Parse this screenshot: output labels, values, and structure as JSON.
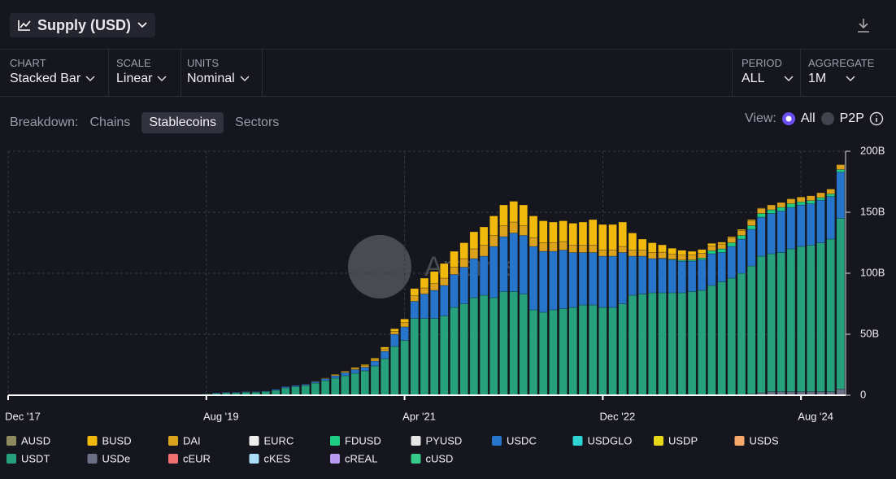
{
  "ui": {
    "title": "Supply (USD)",
    "controls": [
      {
        "label": "CHART",
        "value": "Stacked Bar"
      },
      {
        "label": "SCALE",
        "value": "Linear"
      },
      {
        "label": "UNITS",
        "value": "Nominal"
      },
      {
        "label": "PERIOD",
        "value": "ALL"
      },
      {
        "label": "AGGREGATE",
        "value": "1M"
      }
    ],
    "breakdown": {
      "label": "Breakdown:",
      "options": [
        "Chains",
        "Stablecoins",
        "Sectors"
      ]
    },
    "view": {
      "label": "View:",
      "options": [
        "All",
        "P2P"
      ]
    },
    "watermark": "Artemis"
  },
  "chart_data": {
    "type": "stacked_bar",
    "x": [
      20,
      21,
      22,
      23,
      24,
      25,
      26,
      27,
      28,
      29,
      30,
      31,
      32,
      33,
      34,
      35,
      36,
      37,
      38,
      39,
      40,
      41,
      42,
      43,
      44,
      45,
      46,
      47,
      48,
      49,
      50,
      51,
      52,
      53,
      54,
      55,
      56,
      57,
      58,
      59,
      60,
      61,
      62,
      63,
      64,
      65,
      66,
      67,
      68,
      69,
      70,
      71,
      72,
      73,
      74,
      75,
      76,
      77,
      78,
      79,
      80,
      81,
      82,
      83,
      84
    ],
    "xlim": [
      0,
      84.5
    ],
    "xticks": [
      {
        "value": 0,
        "label": "Dec '17"
      },
      {
        "value": 20,
        "label": "Aug '19"
      },
      {
        "value": 40,
        "label": "Apr '21"
      },
      {
        "value": 60,
        "label": "Dec '22"
      },
      {
        "value": 80,
        "label": "Aug '24"
      }
    ],
    "ylim": [
      0,
      200
    ],
    "yticks": [
      0,
      {
        "value": 50,
        "label": "50B"
      },
      {
        "value": 100,
        "label": "100B"
      },
      {
        "value": 150,
        "label": "150B"
      },
      {
        "value": 200,
        "label": "200B"
      }
    ],
    "grid": true,
    "series": [
      {
        "name": "AUSD",
        "color": "#8c8a5e",
        "values": [
          0,
          0,
          0,
          0,
          0,
          0,
          0,
          0,
          0,
          0,
          0,
          0,
          0,
          0,
          0,
          0,
          0,
          0,
          0,
          0,
          0,
          0,
          0,
          0,
          0,
          0,
          0,
          0,
          0,
          0,
          0,
          0,
          0,
          0,
          0,
          0,
          0,
          0,
          0,
          0,
          0,
          0,
          0,
          0,
          0,
          0,
          0,
          0,
          0,
          0,
          0,
          0,
          0,
          0,
          0,
          0,
          0,
          0,
          0,
          0,
          0,
          0,
          0,
          0,
          0
        ]
      },
      {
        "name": "BUSD",
        "color": "#f0b90b",
        "values": [
          0,
          0,
          0,
          0,
          0,
          0,
          0,
          0,
          0,
          0,
          0,
          0.2,
          0.3,
          0.5,
          0.5,
          0.8,
          1,
          1,
          1.5,
          2,
          3,
          6,
          8,
          10,
          12,
          13,
          13,
          14,
          15,
          16,
          17,
          17,
          17,
          18,
          18,
          17,
          17,
          18,
          19,
          21,
          21,
          21,
          20,
          14,
          9,
          8,
          6,
          5,
          4,
          3,
          3,
          2,
          1.5,
          1,
          1,
          1,
          0.5,
          0,
          0,
          0,
          0,
          0,
          0,
          0,
          0
        ]
      },
      {
        "name": "DAI",
        "color": "#dca21c",
        "values": [
          0,
          0,
          0,
          0,
          0,
          0,
          0,
          0,
          0,
          0,
          0.1,
          0.3,
          0.5,
          0.8,
          0.9,
          1,
          1.2,
          1.5,
          2,
          2.5,
          3.5,
          4.5,
          5,
          5.5,
          6,
          6,
          7,
          8,
          9,
          9,
          9,
          9,
          8,
          7,
          7,
          7,
          7,
          6,
          6,
          6,
          5,
          5,
          5,
          5,
          5,
          5,
          5,
          4,
          4,
          4,
          4,
          4,
          4,
          4,
          4,
          4,
          4,
          4,
          4,
          4,
          4,
          4,
          4,
          4,
          4
        ]
      },
      {
        "name": "EURC",
        "color": "#eeeeee",
        "values": [
          0,
          0,
          0,
          0,
          0,
          0,
          0,
          0,
          0,
          0,
          0,
          0,
          0,
          0,
          0,
          0,
          0,
          0,
          0,
          0,
          0,
          0,
          0,
          0,
          0,
          0,
          0,
          0,
          0,
          0,
          0,
          0,
          0,
          0,
          0,
          0,
          0,
          0,
          0,
          0,
          0,
          0,
          0,
          0,
          0,
          0,
          0,
          0,
          0,
          0,
          0,
          0,
          0,
          0,
          0,
          0,
          0,
          0,
          0,
          0,
          0,
          0,
          0,
          0,
          0
        ]
      },
      {
        "name": "FDUSD",
        "color": "#1ecc82",
        "values": [
          0,
          0,
          0,
          0,
          0,
          0,
          0,
          0,
          0,
          0,
          0,
          0,
          0,
          0,
          0,
          0,
          0,
          0,
          0,
          0,
          0,
          0,
          0,
          0,
          0,
          0,
          0,
          0,
          0,
          0,
          0,
          0,
          0,
          0,
          0,
          0,
          0,
          0,
          0,
          0,
          0,
          0,
          0,
          0,
          0,
          0,
          0.3,
          0.5,
          0.8,
          1,
          1.5,
          2.5,
          3,
          3,
          3,
          3,
          3,
          3,
          3,
          3,
          2.5,
          2.5,
          2,
          2,
          2
        ]
      },
      {
        "name": "PYUSD",
        "color": "#e6e6e6",
        "values": [
          0,
          0,
          0,
          0,
          0,
          0,
          0,
          0,
          0,
          0,
          0,
          0,
          0,
          0,
          0,
          0,
          0,
          0,
          0,
          0,
          0,
          0,
          0,
          0,
          0,
          0,
          0,
          0,
          0,
          0,
          0,
          0,
          0,
          0,
          0,
          0,
          0,
          0,
          0,
          0,
          0,
          0,
          0,
          0,
          0,
          0,
          0,
          0,
          0,
          0,
          0,
          0,
          0,
          0,
          0,
          0,
          0,
          0,
          0,
          0,
          0,
          0,
          0,
          0,
          0
        ]
      },
      {
        "name": "USDC",
        "color": "#2775ca",
        "values": [
          0,
          0.5,
          0.5,
          0.5,
          0.5,
          0.5,
          0.5,
          0.8,
          1,
          1,
          1,
          1.2,
          1.5,
          2,
          2.5,
          3,
          3,
          4,
          6,
          10,
          11,
          14,
          20,
          23,
          25,
          27,
          30,
          32,
          32,
          42,
          45,
          48,
          48,
          52,
          50,
          48,
          48,
          45,
          43,
          43,
          42,
          42,
          42,
          32,
          31,
          28,
          28,
          27,
          26,
          25,
          25,
          26,
          24,
          26,
          28,
          30,
          32,
          33,
          34,
          34,
          34,
          34,
          35,
          35,
          38
        ]
      },
      {
        "name": "USDGLO",
        "color": "#2dd4d4",
        "values": [
          0,
          0,
          0,
          0,
          0,
          0,
          0,
          0,
          0,
          0,
          0,
          0,
          0,
          0,
          0,
          0,
          0,
          0,
          0,
          0,
          0,
          0,
          0,
          0,
          0,
          0,
          0,
          0,
          0,
          0,
          0,
          0,
          0,
          0,
          0,
          0,
          0,
          0,
          0,
          0,
          0,
          0,
          0,
          0,
          0,
          0,
          0,
          0,
          0,
          0,
          0,
          0,
          0,
          0,
          0,
          0,
          0,
          0,
          0,
          0,
          0,
          0,
          0,
          0,
          0
        ]
      },
      {
        "name": "USDP",
        "color": "#e8d81a",
        "values": [
          0,
          0,
          0,
          0,
          0,
          0,
          0,
          0,
          0,
          0,
          0,
          0,
          0,
          0,
          0,
          0,
          0,
          0,
          0,
          0,
          0,
          0,
          0,
          0,
          0,
          0,
          0,
          0,
          0,
          0,
          0,
          0,
          0,
          0,
          0,
          0,
          0,
          0,
          0,
          0,
          0,
          0,
          0,
          0,
          0,
          0,
          0,
          0,
          0,
          0,
          0,
          0,
          0,
          0,
          0,
          0,
          0,
          0,
          0,
          0,
          0,
          0,
          0,
          0,
          0
        ]
      },
      {
        "name": "USDS",
        "color": "#f6a96b",
        "values": [
          0,
          0,
          0,
          0,
          0,
          0,
          0,
          0,
          0,
          0,
          0,
          0,
          0,
          0,
          0,
          0,
          0,
          0,
          0,
          0,
          0,
          0,
          0,
          0,
          0,
          0,
          0,
          0,
          0,
          0,
          0,
          0,
          0,
          0,
          0,
          0,
          0,
          0,
          0,
          0,
          0,
          0,
          0,
          0,
          0,
          0,
          0,
          0,
          0,
          0,
          0,
          0,
          0,
          0,
          0,
          0,
          0,
          0,
          0,
          0,
          0,
          0,
          0,
          0,
          0
        ]
      },
      {
        "name": "USDT",
        "color": "#26a17b",
        "values": [
          1,
          1.5,
          2,
          2,
          2.5,
          2.5,
          3,
          4,
          6,
          7,
          8,
          10,
          12,
          14,
          16,
          18,
          20,
          24,
          30,
          40,
          45,
          63,
          63,
          63,
          65,
          72,
          75,
          80,
          82,
          80,
          85,
          85,
          83,
          70,
          68,
          70,
          71,
          72,
          74,
          74,
          72,
          72,
          75,
          82,
          83,
          84,
          84,
          84,
          84,
          85,
          86,
          90,
          93,
          96,
          100,
          105,
          112,
          113,
          114,
          117,
          119,
          120,
          122,
          125,
          140
        ]
      },
      {
        "name": "USDe",
        "color": "#6b6f85",
        "values": [
          0,
          0,
          0,
          0,
          0,
          0,
          0,
          0,
          0,
          0,
          0,
          0,
          0,
          0,
          0,
          0,
          0,
          0,
          0,
          0,
          0,
          0,
          0,
          0,
          0,
          0,
          0,
          0,
          0,
          0,
          0,
          0,
          0,
          0,
          0,
          0,
          0,
          0,
          0,
          0,
          0,
          0,
          0,
          0,
          0,
          0,
          0,
          0,
          0,
          0,
          0,
          0,
          0,
          0,
          0,
          1,
          2,
          3,
          3,
          3,
          3,
          3,
          3,
          3,
          5
        ]
      },
      {
        "name": "cEUR",
        "color": "#f07070",
        "values": [
          0,
          0,
          0,
          0,
          0,
          0,
          0,
          0,
          0,
          0,
          0,
          0,
          0,
          0,
          0,
          0,
          0,
          0,
          0,
          0,
          0,
          0,
          0,
          0,
          0,
          0,
          0,
          0,
          0,
          0,
          0,
          0,
          0,
          0,
          0,
          0,
          0,
          0,
          0,
          0,
          0,
          0,
          0,
          0,
          0,
          0,
          0,
          0,
          0,
          0,
          0,
          0,
          0,
          0,
          0,
          0,
          0,
          0,
          0,
          0,
          0,
          0,
          0,
          0,
          0
        ]
      },
      {
        "name": "cKES",
        "color": "#a8ddf5",
        "values": [
          0,
          0,
          0,
          0,
          0,
          0,
          0,
          0,
          0,
          0,
          0,
          0,
          0,
          0,
          0,
          0,
          0,
          0,
          0,
          0,
          0,
          0,
          0,
          0,
          0,
          0,
          0,
          0,
          0,
          0,
          0,
          0,
          0,
          0,
          0,
          0,
          0,
          0,
          0,
          0,
          0,
          0,
          0,
          0,
          0,
          0,
          0,
          0,
          0,
          0,
          0,
          0,
          0,
          0,
          0,
          0,
          0,
          0,
          0,
          0,
          0,
          0,
          0,
          0,
          0
        ]
      },
      {
        "name": "cREAL",
        "color": "#b69af0",
        "values": [
          0,
          0,
          0,
          0,
          0,
          0,
          0,
          0,
          0,
          0,
          0,
          0,
          0,
          0,
          0,
          0,
          0,
          0,
          0,
          0,
          0,
          0,
          0,
          0,
          0,
          0,
          0,
          0,
          0,
          0,
          0,
          0,
          0,
          0,
          0,
          0,
          0,
          0,
          0,
          0,
          0,
          0,
          0,
          0,
          0,
          0,
          0,
          0,
          0,
          0,
          0,
          0,
          0,
          0,
          0,
          0,
          0,
          0,
          0,
          0,
          0,
          0,
          0,
          0,
          0
        ]
      },
      {
        "name": "cUSD",
        "color": "#35c98a",
        "values": [
          0,
          0,
          0,
          0,
          0,
          0,
          0,
          0,
          0,
          0,
          0,
          0,
          0,
          0,
          0,
          0,
          0,
          0,
          0,
          0,
          0,
          0,
          0,
          0,
          0,
          0,
          0,
          0,
          0,
          0,
          0,
          0,
          0,
          0,
          0,
          0,
          0,
          0,
          0,
          0,
          0,
          0,
          0,
          0,
          0,
          0,
          0,
          0,
          0,
          0,
          0,
          0,
          0,
          0,
          0,
          0,
          0,
          0,
          0,
          0,
          0,
          0,
          0,
          0,
          0
        ]
      }
    ]
  }
}
